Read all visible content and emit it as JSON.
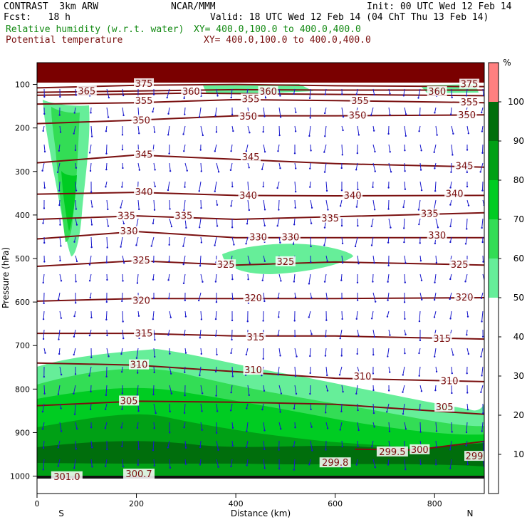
{
  "header": {
    "model": "CONTRAST  3km ARW",
    "org": "NCAR/MMM",
    "init": "Init: 00 UTC Wed 12 Feb 14",
    "fcst": "Fcst:   18 h",
    "valid": "Valid: 18 UTC Wed 12 Feb 14 (04 ChT Thu 13 Feb 14)",
    "rh_label": "Relative humidity (w.r.t. water)",
    "rh_xy": "XY= 400.0,100.0 to 400.0,400.0",
    "theta_label": "Potential temperature",
    "theta_xy": "XY= 400.0,100.0 to 400.0,400.0"
  },
  "colors": {
    "rh50": "#66ee99",
    "rh60": "#33dd55",
    "rh70": "#00cc22",
    "rh80": "#00a015",
    "rh90": "#006e0c",
    "rh100": "#7a0000",
    "contour": "#7a1010",
    "vector": "#1a1acc"
  },
  "chart_data": {
    "type": "cross-section",
    "xlabel": "Distance (km)",
    "ylabel": "Pressure (hPa)",
    "xlim": [
      0,
      900
    ],
    "ylim": [
      1040,
      50
    ],
    "x_ticks": [
      0,
      200,
      400,
      600,
      800
    ],
    "y_ticks": [
      100,
      200,
      300,
      400,
      500,
      600,
      700,
      800,
      900,
      1000
    ],
    "end_labels": {
      "left": "S",
      "right": "N"
    },
    "colorbar": {
      "unit": "%",
      "levels": [
        10,
        20,
        30,
        40,
        50,
        60,
        70,
        80,
        90,
        100
      ],
      "bands": [
        {
          "from": 0,
          "to": 50,
          "color": "#ffffff"
        },
        {
          "from": 50,
          "to": 60,
          "color": "#66ee99"
        },
        {
          "from": 60,
          "to": 70,
          "color": "#33dd55"
        },
        {
          "from": 70,
          "to": 80,
          "color": "#00cc22"
        },
        {
          "from": 80,
          "to": 90,
          "color": "#00a015"
        },
        {
          "from": 90,
          "to": 100,
          "color": "#006e0c"
        },
        {
          "from": 100,
          "to": 110,
          "color": "#ff8080"
        }
      ]
    },
    "isentropes": [
      {
        "theta": "375",
        "points": [
          [
            0,
            108
          ],
          [
            200,
            102
          ],
          [
            400,
            100
          ],
          [
            600,
            103
          ],
          [
            900,
            105
          ]
        ],
        "labels": [
          [
            215,
            99
          ],
          [
            870,
            100
          ]
        ]
      },
      {
        "theta": "365",
        "points": [
          [
            0,
            118
          ],
          [
            200,
            115
          ],
          [
            400,
            112
          ],
          [
            600,
            113
          ],
          [
            900,
            113
          ]
        ],
        "labels": [
          [
            100,
            116
          ]
        ]
      },
      {
        "theta": "360",
        "points": [
          [
            0,
            125
          ],
          [
            200,
            122
          ],
          [
            300,
            120
          ],
          [
            500,
            122
          ],
          [
            700,
            124
          ],
          [
            900,
            126
          ]
        ],
        "labels": [
          [
            310,
            117
          ],
          [
            465,
            117
          ],
          [
            805,
            117
          ]
        ]
      },
      {
        "theta": "355",
        "points": [
          [
            0,
            145
          ],
          [
            200,
            142
          ],
          [
            400,
            135
          ],
          [
            600,
            137
          ],
          [
            900,
            142
          ]
        ],
        "labels": [
          [
            215,
            138
          ],
          [
            430,
            134
          ],
          [
            650,
            138
          ],
          [
            870,
            142
          ]
        ]
      },
      {
        "theta": "350",
        "points": [
          [
            0,
            190
          ],
          [
            200,
            182
          ],
          [
            400,
            172
          ],
          [
            600,
            172
          ],
          [
            900,
            170
          ]
        ],
        "labels": [
          [
            210,
            183
          ],
          [
            425,
            174
          ],
          [
            645,
            172
          ],
          [
            865,
            171
          ]
        ]
      },
      {
        "theta": "345",
        "points": [
          [
            0,
            280
          ],
          [
            200,
            262
          ],
          [
            400,
            272
          ],
          [
            600,
            282
          ],
          [
            900,
            290
          ]
        ],
        "labels": [
          [
            215,
            262
          ],
          [
            430,
            268
          ],
          [
            860,
            288
          ]
        ]
      },
      {
        "theta": "340",
        "points": [
          [
            0,
            352
          ],
          [
            200,
            348
          ],
          [
            400,
            355
          ],
          [
            600,
            356
          ],
          [
            900,
            355
          ]
        ],
        "labels": [
          [
            215,
            348
          ],
          [
            425,
            356
          ],
          [
            635,
            356
          ],
          [
            840,
            352
          ]
        ]
      },
      {
        "theta": "335",
        "points": [
          [
            0,
            410
          ],
          [
            200,
            402
          ],
          [
            400,
            410
          ],
          [
            600,
            404
          ],
          [
            900,
            395
          ]
        ],
        "labels": [
          [
            180,
            403
          ],
          [
            295,
            403
          ],
          [
            590,
            408
          ],
          [
            790,
            398
          ]
        ]
      },
      {
        "theta": "330",
        "points": [
          [
            0,
            455
          ],
          [
            200,
            438
          ],
          [
            400,
            452
          ],
          [
            600,
            452
          ],
          [
            900,
            452
          ]
        ],
        "labels": [
          [
            185,
            438
          ],
          [
            445,
            452
          ],
          [
            510,
            452
          ],
          [
            805,
            448
          ]
        ]
      },
      {
        "theta": "325",
        "points": [
          [
            0,
            518
          ],
          [
            200,
            505
          ],
          [
            400,
            515
          ],
          [
            600,
            508
          ],
          [
            900,
            515
          ]
        ],
        "labels": [
          [
            210,
            505
          ],
          [
            380,
            515
          ],
          [
            500,
            508
          ],
          [
            850,
            515
          ]
        ]
      },
      {
        "theta": "320",
        "points": [
          [
            0,
            598
          ],
          [
            200,
            592
          ],
          [
            400,
            592
          ],
          [
            600,
            592
          ],
          [
            900,
            590
          ]
        ],
        "labels": [
          [
            210,
            597
          ],
          [
            435,
            592
          ],
          [
            860,
            590
          ]
        ]
      },
      {
        "theta": "315",
        "points": [
          [
            0,
            672
          ],
          [
            200,
            672
          ],
          [
            400,
            678
          ],
          [
            600,
            678
          ],
          [
            900,
            685
          ]
        ],
        "labels": [
          [
            215,
            673
          ],
          [
            440,
            682
          ],
          [
            815,
            685
          ]
        ]
      },
      {
        "theta": "310",
        "points": [
          [
            0,
            740
          ],
          [
            200,
            745
          ],
          [
            400,
            760
          ],
          [
            600,
            775
          ],
          [
            900,
            783
          ]
        ],
        "labels": [
          [
            205,
            745
          ],
          [
            435,
            757
          ],
          [
            655,
            772
          ],
          [
            830,
            782
          ]
        ]
      },
      {
        "theta": "305",
        "points": [
          [
            0,
            838
          ],
          [
            200,
            828
          ],
          [
            400,
            830
          ],
          [
            600,
            835
          ],
          [
            900,
            858
          ]
        ],
        "labels": [
          [
            185,
            828
          ],
          [
            820,
            842
          ]
        ]
      },
      {
        "theta": "300",
        "points": [
          [
            640,
            938
          ],
          [
            760,
            940
          ],
          [
            900,
            920
          ]
        ],
        "labels": [
          [
            770,
            940
          ]
        ]
      },
      {
        "theta": "300.7",
        "points": [],
        "labels": [
          [
            205,
            996
          ]
        ]
      },
      {
        "theta": "301.0",
        "points": [],
        "labels": [
          [
            60,
            1002
          ]
        ]
      },
      {
        "theta": "299.8",
        "points": [],
        "labels": [
          [
            600,
            970
          ]
        ]
      },
      {
        "theta": "299.5",
        "points": [],
        "labels": [
          [
            715,
            945
          ]
        ]
      },
      {
        "theta": "299",
        "points": [],
        "labels": [
          [
            880,
            955
          ]
        ]
      }
    ]
  }
}
